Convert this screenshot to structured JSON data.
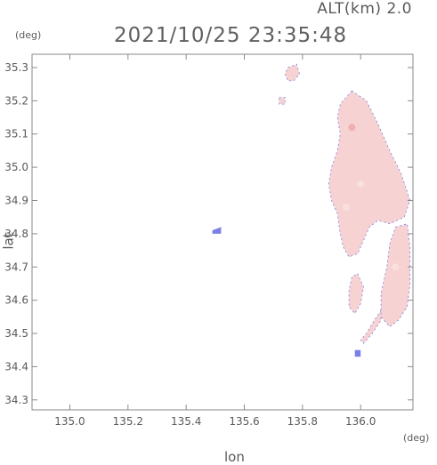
{
  "header": {
    "altitude": "ALT(km) 2.0",
    "timestamp": "2021/10/25 23:35:48"
  },
  "axes": {
    "y_unit": "(deg)",
    "x_unit": "(deg)",
    "xlabel": "lon",
    "ylabel": "lat"
  },
  "colors": {
    "echo_fill": "#f7d2d2",
    "echo_light": "#fbe4e4",
    "echo_dark": "#ee9f9f",
    "echo_edge": "#7b7fea",
    "axis": "#8a8a8a"
  },
  "chart_data": {
    "type": "heatmap",
    "xlim": [
      134.87,
      136.18
    ],
    "ylim": [
      34.27,
      35.34
    ],
    "x_ticks": [
      135.0,
      135.2,
      135.4,
      135.6,
      135.8,
      136.0
    ],
    "x_tick_labels": [
      "135.0",
      "135.2",
      "135.4",
      "135.6",
      "135.8",
      "136.0"
    ],
    "y_ticks": [
      34.3,
      34.4,
      34.5,
      34.6,
      34.7,
      34.8,
      34.9,
      35.0,
      35.1,
      35.2,
      35.3
    ],
    "y_tick_labels": [
      "34.3",
      "34.4",
      "34.5",
      "34.6",
      "34.7",
      "34.8",
      "34.9",
      "35.0",
      "35.1",
      "35.2",
      "35.3"
    ],
    "regions": [
      {
        "kind": "main-band",
        "tone": "echo_fill",
        "points": [
          [
            135.97,
            35.23
          ],
          [
            136.02,
            35.2
          ],
          [
            136.06,
            35.13
          ],
          [
            136.1,
            35.05
          ],
          [
            136.14,
            34.98
          ],
          [
            136.17,
            34.9
          ],
          [
            136.15,
            34.85
          ],
          [
            136.1,
            34.83
          ],
          [
            136.06,
            34.84
          ],
          [
            136.03,
            34.82
          ],
          [
            136.01,
            34.78
          ],
          [
            135.99,
            34.74
          ],
          [
            135.96,
            34.73
          ],
          [
            135.94,
            34.76
          ],
          [
            135.93,
            34.8
          ],
          [
            135.92,
            34.86
          ],
          [
            135.9,
            34.9
          ],
          [
            135.89,
            34.95
          ],
          [
            135.9,
            35.0
          ],
          [
            135.92,
            35.05
          ],
          [
            135.93,
            35.1
          ],
          [
            135.92,
            35.15
          ],
          [
            135.93,
            35.19
          ]
        ]
      },
      {
        "kind": "east-lobe",
        "tone": "echo_fill",
        "points": [
          [
            136.12,
            34.82
          ],
          [
            136.16,
            34.83
          ],
          [
            136.17,
            34.76
          ],
          [
            136.17,
            34.65
          ],
          [
            136.16,
            34.58
          ],
          [
            136.13,
            34.54
          ],
          [
            136.1,
            34.52
          ],
          [
            136.07,
            34.55
          ],
          [
            136.07,
            34.62
          ],
          [
            136.09,
            34.7
          ],
          [
            136.1,
            34.77
          ]
        ]
      },
      {
        "kind": "south-arc",
        "tone": "echo_fill",
        "points": [
          [
            136.07,
            34.57
          ],
          [
            136.04,
            34.53
          ],
          [
            136.02,
            34.5
          ],
          [
            136.0,
            34.48
          ],
          [
            136.01,
            34.47
          ],
          [
            136.04,
            34.5
          ],
          [
            136.07,
            34.54
          ]
        ]
      },
      {
        "kind": "south-blob",
        "tone": "echo_fill",
        "points": [
          [
            135.99,
            34.68
          ],
          [
            136.01,
            34.64
          ],
          [
            136.0,
            34.59
          ],
          [
            135.98,
            34.56
          ],
          [
            135.96,
            34.58
          ],
          [
            135.96,
            34.63
          ],
          [
            135.97,
            34.67
          ]
        ]
      },
      {
        "kind": "north-cell",
        "tone": "echo_fill",
        "points": [
          [
            135.75,
            35.3
          ],
          [
            135.78,
            35.31
          ],
          [
            135.79,
            35.28
          ],
          [
            135.77,
            35.26
          ],
          [
            135.75,
            35.26
          ],
          [
            135.74,
            35.28
          ]
        ]
      },
      {
        "kind": "small-cell",
        "tone": "echo_fill",
        "points": [
          [
            135.72,
            35.21
          ],
          [
            135.74,
            35.21
          ],
          [
            135.74,
            35.19
          ],
          [
            135.72,
            35.19
          ]
        ]
      },
      {
        "kind": "fleck",
        "tone": "echo_edge",
        "points": [
          [
            135.49,
            34.81
          ],
          [
            135.52,
            34.82
          ],
          [
            135.52,
            34.8
          ],
          [
            135.49,
            34.8
          ]
        ]
      },
      {
        "kind": "fleck",
        "tone": "echo_edge",
        "points": [
          [
            135.98,
            34.45
          ],
          [
            136.0,
            34.45
          ],
          [
            136.0,
            34.43
          ],
          [
            135.98,
            34.43
          ]
        ]
      }
    ]
  }
}
